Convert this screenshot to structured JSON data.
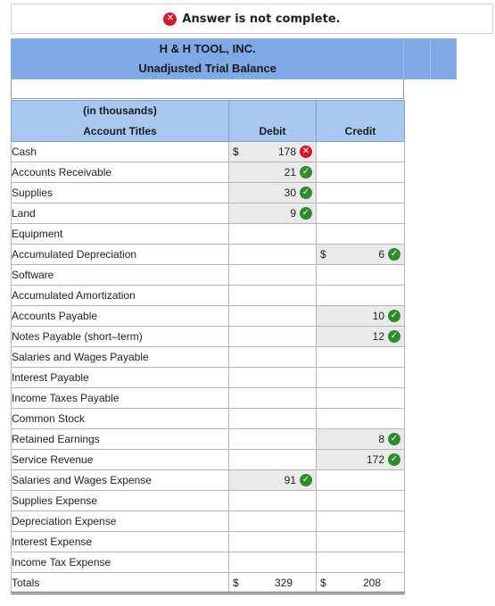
{
  "banner": {
    "text": "Answer is not complete.",
    "icon": "x-circle-icon"
  },
  "header": {
    "company": "H & H TOOL, INC.",
    "report": "Unadjusted Trial Balance",
    "units": "(in thousands)"
  },
  "columns": {
    "account": "Account Titles",
    "debit": "Debit",
    "credit": "Credit"
  },
  "currency": "$",
  "rows": [
    {
      "account": "Cash",
      "debit": "178",
      "debit_status": "incorrect",
      "debit_cur": "$",
      "credit": "",
      "credit_status": "",
      "credit_cur": ""
    },
    {
      "account": "Accounts Receivable",
      "debit": "21",
      "debit_status": "correct",
      "debit_cur": "",
      "credit": "",
      "credit_status": "",
      "credit_cur": ""
    },
    {
      "account": "Supplies",
      "debit": "30",
      "debit_status": "correct",
      "debit_cur": "",
      "credit": "",
      "credit_status": "",
      "credit_cur": ""
    },
    {
      "account": "Land",
      "debit": "9",
      "debit_status": "correct",
      "debit_cur": "",
      "credit": "",
      "credit_status": "",
      "credit_cur": ""
    },
    {
      "account": "Equipment",
      "debit": "",
      "debit_status": "",
      "debit_cur": "",
      "credit": "",
      "credit_status": "",
      "credit_cur": ""
    },
    {
      "account": "Accumulated Depreciation",
      "debit": "",
      "debit_status": "",
      "debit_cur": "",
      "credit": "6",
      "credit_status": "correct",
      "credit_cur": "$"
    },
    {
      "account": "Software",
      "debit": "",
      "debit_status": "",
      "debit_cur": "",
      "credit": "",
      "credit_status": "",
      "credit_cur": ""
    },
    {
      "account": "Accumulated Amortization",
      "debit": "",
      "debit_status": "",
      "debit_cur": "",
      "credit": "",
      "credit_status": "",
      "credit_cur": ""
    },
    {
      "account": "Accounts Payable",
      "debit": "",
      "debit_status": "",
      "debit_cur": "",
      "credit": "10",
      "credit_status": "correct",
      "credit_cur": ""
    },
    {
      "account": "Notes Payable (short–term)",
      "debit": "",
      "debit_status": "",
      "debit_cur": "",
      "credit": "12",
      "credit_status": "correct",
      "credit_cur": ""
    },
    {
      "account": "Salaries and Wages Payable",
      "debit": "",
      "debit_status": "",
      "debit_cur": "",
      "credit": "",
      "credit_status": "",
      "credit_cur": ""
    },
    {
      "account": "Interest Payable",
      "debit": "",
      "debit_status": "",
      "debit_cur": "",
      "credit": "",
      "credit_status": "",
      "credit_cur": ""
    },
    {
      "account": "Income Taxes Payable",
      "debit": "",
      "debit_status": "",
      "debit_cur": "",
      "credit": "",
      "credit_status": "",
      "credit_cur": ""
    },
    {
      "account": "Common Stock",
      "debit": "",
      "debit_status": "",
      "debit_cur": "",
      "credit": "",
      "credit_status": "",
      "credit_cur": ""
    },
    {
      "account": "Retained Earnings",
      "debit": "",
      "debit_status": "",
      "debit_cur": "",
      "credit": "8",
      "credit_status": "correct",
      "credit_cur": ""
    },
    {
      "account": "Service Revenue",
      "debit": "",
      "debit_status": "",
      "debit_cur": "",
      "credit": "172",
      "credit_status": "correct",
      "credit_cur": ""
    },
    {
      "account": "Salaries and Wages Expense",
      "debit": "91",
      "debit_status": "correct",
      "debit_cur": "",
      "credit": "",
      "credit_status": "",
      "credit_cur": ""
    },
    {
      "account": "Supplies Expense",
      "debit": "",
      "debit_status": "",
      "debit_cur": "",
      "credit": "",
      "credit_status": "",
      "credit_cur": ""
    },
    {
      "account": "Depreciation Expense",
      "debit": "",
      "debit_status": "",
      "debit_cur": "",
      "credit": "",
      "credit_status": "",
      "credit_cur": ""
    },
    {
      "account": "Interest Expense",
      "debit": "",
      "debit_status": "",
      "debit_cur": "",
      "credit": "",
      "credit_status": "",
      "credit_cur": ""
    },
    {
      "account": "Income Tax Expense",
      "debit": "",
      "debit_status": "",
      "debit_cur": "",
      "credit": "",
      "credit_status": "",
      "credit_cur": ""
    }
  ],
  "totals": {
    "label": "Totals",
    "debit": "329",
    "credit": "208",
    "debit_cur": "$",
    "credit_cur": "$"
  },
  "colors": {
    "header_band": "#7fa9e6",
    "subheader": "#a8c8f0",
    "correct": "#2e8b2e",
    "incorrect": "#d0192c",
    "filled_cell": "#eaeaea"
  }
}
